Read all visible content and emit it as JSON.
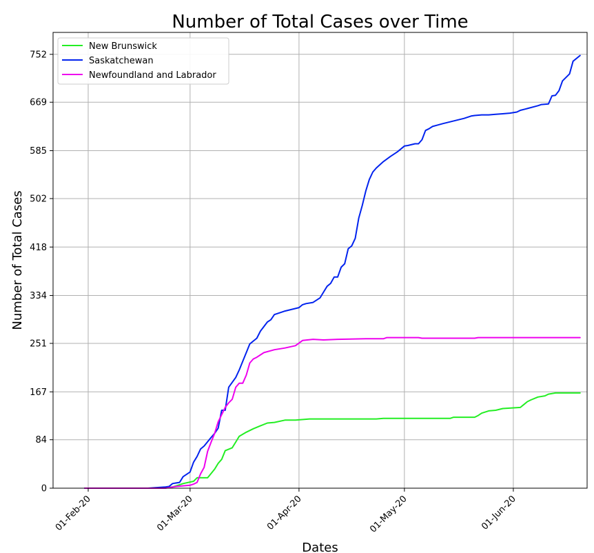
{
  "chart_data": {
    "type": "line",
    "title": "Number of Total Cases over Time",
    "xlabel": "Dates",
    "ylabel": "Number of Total Cases",
    "x_range": [
      "2020-01-22",
      "2020-06-22"
    ],
    "ylim": [
      0,
      790
    ],
    "x_ticks": [
      {
        "date": "2020-02-01",
        "label": "01-Feb-20"
      },
      {
        "date": "2020-03-01",
        "label": "01-Mar-20"
      },
      {
        "date": "2020-04-01",
        "label": "01-Apr-20"
      },
      {
        "date": "2020-05-01",
        "label": "01-May-20"
      },
      {
        "date": "2020-06-01",
        "label": "01-Jun-20"
      }
    ],
    "y_ticks": [
      0,
      84,
      167,
      251,
      334,
      418,
      502,
      585,
      669,
      752
    ],
    "grid": true,
    "legend_position": "upper-left",
    "series": [
      {
        "name": "New Brunswick",
        "color": "#22ee22",
        "points": [
          [
            "2020-01-31",
            0
          ],
          [
            "2020-02-20",
            0
          ],
          [
            "2020-02-25",
            2
          ],
          [
            "2020-02-28",
            8
          ],
          [
            "2020-03-02",
            12
          ],
          [
            "2020-03-03",
            18
          ],
          [
            "2020-03-05",
            18
          ],
          [
            "2020-03-06",
            18
          ],
          [
            "2020-03-08",
            33
          ],
          [
            "2020-03-09",
            43
          ],
          [
            "2020-03-10",
            50
          ],
          [
            "2020-03-11",
            65
          ],
          [
            "2020-03-13",
            70
          ],
          [
            "2020-03-14",
            80
          ],
          [
            "2020-03-15",
            90
          ],
          [
            "2020-03-17",
            97
          ],
          [
            "2020-03-19",
            103
          ],
          [
            "2020-03-21",
            108
          ],
          [
            "2020-03-23",
            113
          ],
          [
            "2020-03-25",
            114
          ],
          [
            "2020-03-28",
            118
          ],
          [
            "2020-03-31",
            118
          ],
          [
            "2020-04-04",
            120
          ],
          [
            "2020-04-20",
            120
          ],
          [
            "2020-04-23",
            120
          ],
          [
            "2020-04-25",
            121
          ],
          [
            "2020-04-26",
            121
          ],
          [
            "2020-05-01",
            121
          ],
          [
            "2020-05-10",
            121
          ],
          [
            "2020-05-14",
            121
          ],
          [
            "2020-05-15",
            123
          ],
          [
            "2020-05-20",
            123
          ],
          [
            "2020-05-21",
            123
          ],
          [
            "2020-05-22",
            126
          ],
          [
            "2020-05-23",
            130
          ],
          [
            "2020-05-24",
            132
          ],
          [
            "2020-05-25",
            134
          ],
          [
            "2020-05-27",
            135
          ],
          [
            "2020-05-29",
            138
          ],
          [
            "2020-06-03",
            140
          ],
          [
            "2020-06-04",
            145
          ],
          [
            "2020-06-05",
            150
          ],
          [
            "2020-06-06",
            153
          ],
          [
            "2020-06-08",
            158
          ],
          [
            "2020-06-10",
            160
          ],
          [
            "2020-06-11",
            163
          ],
          [
            "2020-06-13",
            165
          ],
          [
            "2020-06-20",
            165
          ]
        ]
      },
      {
        "name": "Saskatchewan",
        "color": "#0022ee",
        "points": [
          [
            "2020-01-31",
            0
          ],
          [
            "2020-02-18",
            0
          ],
          [
            "2020-02-23",
            2
          ],
          [
            "2020-02-24",
            3
          ],
          [
            "2020-02-25",
            8
          ],
          [
            "2020-02-27",
            10
          ],
          [
            "2020-02-28",
            20
          ],
          [
            "2020-03-01",
            28
          ],
          [
            "2020-03-02",
            45
          ],
          [
            "2020-03-03",
            55
          ],
          [
            "2020-03-04",
            68
          ],
          [
            "2020-03-05",
            73
          ],
          [
            "2020-03-07",
            88
          ],
          [
            "2020-03-08",
            95
          ],
          [
            "2020-03-09",
            104
          ],
          [
            "2020-03-10",
            135
          ],
          [
            "2020-03-11",
            135
          ],
          [
            "2020-03-12",
            175
          ],
          [
            "2020-03-14",
            192
          ],
          [
            "2020-03-15",
            205
          ],
          [
            "2020-03-16",
            220
          ],
          [
            "2020-03-17",
            235
          ],
          [
            "2020-03-18",
            250
          ],
          [
            "2020-03-19",
            255
          ],
          [
            "2020-03-20",
            260
          ],
          [
            "2020-03-21",
            272
          ],
          [
            "2020-03-23",
            288
          ],
          [
            "2020-03-24",
            292
          ],
          [
            "2020-03-25",
            301
          ],
          [
            "2020-03-27",
            305
          ],
          [
            "2020-03-28",
            307
          ],
          [
            "2020-03-30",
            310
          ],
          [
            "2020-04-01",
            313
          ],
          [
            "2020-04-02",
            318
          ],
          [
            "2020-04-03",
            320
          ],
          [
            "2020-04-05",
            322
          ],
          [
            "2020-04-07",
            330
          ],
          [
            "2020-04-08",
            340
          ],
          [
            "2020-04-09",
            350
          ],
          [
            "2020-04-10",
            355
          ],
          [
            "2020-04-11",
            366
          ],
          [
            "2020-04-12",
            366
          ],
          [
            "2020-04-13",
            383
          ],
          [
            "2020-04-14",
            389
          ],
          [
            "2020-04-15",
            415
          ],
          [
            "2020-04-16",
            420
          ],
          [
            "2020-04-17",
            433
          ],
          [
            "2020-04-18",
            468
          ],
          [
            "2020-04-19",
            490
          ],
          [
            "2020-04-20",
            515
          ],
          [
            "2020-04-21",
            535
          ],
          [
            "2020-04-22",
            548
          ],
          [
            "2020-04-23",
            555
          ],
          [
            "2020-04-25",
            566
          ],
          [
            "2020-04-27",
            575
          ],
          [
            "2020-04-29",
            583
          ],
          [
            "2020-05-01",
            593
          ],
          [
            "2020-05-02",
            594
          ],
          [
            "2020-05-04",
            597
          ],
          [
            "2020-05-05",
            597
          ],
          [
            "2020-05-06",
            604
          ],
          [
            "2020-05-07",
            620
          ],
          [
            "2020-05-08",
            623
          ],
          [
            "2020-05-09",
            627
          ],
          [
            "2020-05-12",
            632
          ],
          [
            "2020-05-14",
            635
          ],
          [
            "2020-05-16",
            638
          ],
          [
            "2020-05-18",
            641
          ],
          [
            "2020-05-20",
            645
          ],
          [
            "2020-05-21",
            646
          ],
          [
            "2020-05-23",
            647
          ],
          [
            "2020-05-25",
            647
          ],
          [
            "2020-05-27",
            648
          ],
          [
            "2020-05-29",
            649
          ],
          [
            "2020-05-31",
            650
          ],
          [
            "2020-06-02",
            652
          ],
          [
            "2020-06-03",
            655
          ],
          [
            "2020-06-05",
            658
          ],
          [
            "2020-06-08",
            663
          ],
          [
            "2020-06-09",
            665
          ],
          [
            "2020-06-11",
            666
          ],
          [
            "2020-06-12",
            680
          ],
          [
            "2020-06-13",
            681
          ],
          [
            "2020-06-14",
            689
          ],
          [
            "2020-06-15",
            706
          ],
          [
            "2020-06-17",
            718
          ],
          [
            "2020-06-18",
            740
          ],
          [
            "2020-06-20",
            750
          ]
        ]
      },
      {
        "name": "Newfoundland and Labrador",
        "color": "#ee00ee",
        "points": [
          [
            "2020-01-31",
            0
          ],
          [
            "2020-02-23",
            0
          ],
          [
            "2020-02-25",
            2
          ],
          [
            "2020-02-26",
            3
          ],
          [
            "2020-03-01",
            5
          ],
          [
            "2020-03-02",
            7
          ],
          [
            "2020-03-03",
            10
          ],
          [
            "2020-03-04",
            25
          ],
          [
            "2020-03-05",
            36
          ],
          [
            "2020-03-06",
            64
          ],
          [
            "2020-03-07",
            80
          ],
          [
            "2020-03-08",
            95
          ],
          [
            "2020-03-09",
            115
          ],
          [
            "2020-03-11",
            140
          ],
          [
            "2020-03-12",
            148
          ],
          [
            "2020-03-13",
            154
          ],
          [
            "2020-03-14",
            175
          ],
          [
            "2020-03-15",
            182
          ],
          [
            "2020-03-16",
            182
          ],
          [
            "2020-03-17",
            196
          ],
          [
            "2020-03-18",
            217
          ],
          [
            "2020-03-19",
            224
          ],
          [
            "2020-03-20",
            227
          ],
          [
            "2020-03-22",
            235
          ],
          [
            "2020-03-25",
            240
          ],
          [
            "2020-03-28",
            243
          ],
          [
            "2020-03-31",
            247
          ],
          [
            "2020-04-02",
            256
          ],
          [
            "2020-04-05",
            258
          ],
          [
            "2020-04-08",
            257
          ],
          [
            "2020-04-12",
            258
          ],
          [
            "2020-04-20",
            259
          ],
          [
            "2020-04-25",
            259
          ],
          [
            "2020-04-26",
            261
          ],
          [
            "2020-05-05",
            261
          ],
          [
            "2020-05-06",
            260
          ],
          [
            "2020-05-14",
            260
          ],
          [
            "2020-05-21",
            260
          ],
          [
            "2020-05-22",
            261
          ],
          [
            "2020-06-20",
            261
          ]
        ]
      }
    ]
  }
}
